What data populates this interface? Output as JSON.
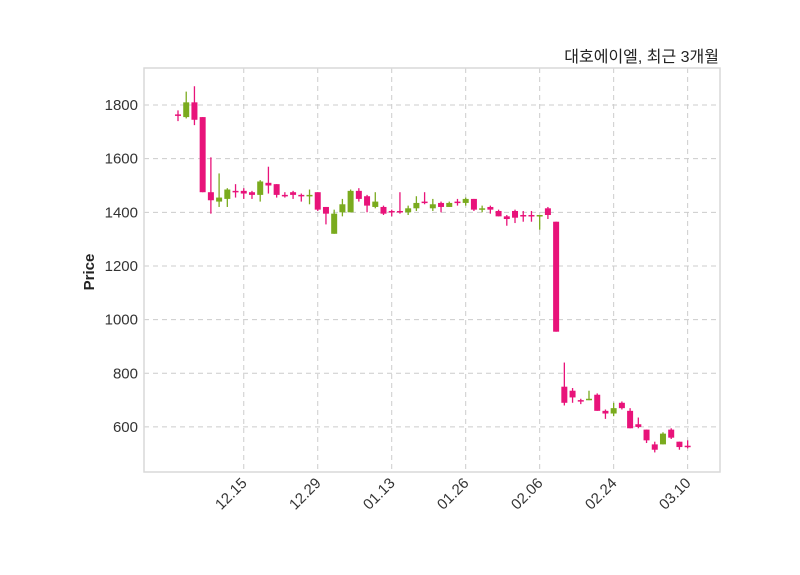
{
  "chart_data": {
    "type": "candlestick",
    "title": "대호에이엘, 최근 3개월",
    "xlabel": "",
    "ylabel": "Price",
    "ylim": [
      432,
      1938
    ],
    "yticks": [
      600,
      800,
      1000,
      1200,
      1400,
      1600,
      1800
    ],
    "grid": true,
    "colors": {
      "up": "#7aab1e",
      "down": "#e8137a",
      "axis": "#d9d9d9"
    },
    "xticks": [
      {
        "index": 8,
        "label": "12.15"
      },
      {
        "index": 17,
        "label": "12.29"
      },
      {
        "index": 26,
        "label": "01.13"
      },
      {
        "index": 35,
        "label": "01.26"
      },
      {
        "index": 44,
        "label": "02.06"
      },
      {
        "index": 53,
        "label": "02.24"
      },
      {
        "index": 62,
        "label": "03.10"
      }
    ],
    "ohlc": [
      [
        1765,
        1780,
        1740,
        1760
      ],
      [
        1755,
        1850,
        1750,
        1810
      ],
      [
        1810,
        1870,
        1725,
        1745
      ],
      [
        1755,
        1755,
        1475,
        1475
      ],
      [
        1475,
        1605,
        1395,
        1445
      ],
      [
        1440,
        1545,
        1420,
        1455
      ],
      [
        1450,
        1490,
        1420,
        1485
      ],
      [
        1480,
        1505,
        1455,
        1475
      ],
      [
        1480,
        1490,
        1450,
        1470
      ],
      [
        1475,
        1480,
        1450,
        1465
      ],
      [
        1465,
        1520,
        1440,
        1515
      ],
      [
        1510,
        1570,
        1470,
        1500
      ],
      [
        1505,
        1505,
        1455,
        1465
      ],
      [
        1465,
        1475,
        1455,
        1460
      ],
      [
        1475,
        1480,
        1450,
        1465
      ],
      [
        1465,
        1470,
        1440,
        1460
      ],
      [
        1460,
        1485,
        1430,
        1465
      ],
      [
        1475,
        1475,
        1405,
        1410
      ],
      [
        1420,
        1420,
        1355,
        1395
      ],
      [
        1320,
        1410,
        1320,
        1395
      ],
      [
        1400,
        1450,
        1385,
        1430
      ],
      [
        1400,
        1485,
        1400,
        1480
      ],
      [
        1480,
        1490,
        1440,
        1450
      ],
      [
        1460,
        1465,
        1400,
        1425
      ],
      [
        1420,
        1475,
        1415,
        1440
      ],
      [
        1420,
        1425,
        1390,
        1395
      ],
      [
        1405,
        1410,
        1385,
        1400
      ],
      [
        1405,
        1475,
        1395,
        1400
      ],
      [
        1400,
        1425,
        1390,
        1415
      ],
      [
        1415,
        1460,
        1405,
        1435
      ],
      [
        1440,
        1475,
        1430,
        1435
      ],
      [
        1415,
        1450,
        1405,
        1430
      ],
      [
        1435,
        1440,
        1400,
        1420
      ],
      [
        1420,
        1440,
        1420,
        1435
      ],
      [
        1440,
        1450,
        1425,
        1435
      ],
      [
        1435,
        1455,
        1425,
        1450
      ],
      [
        1450,
        1450,
        1405,
        1410
      ],
      [
        1410,
        1425,
        1400,
        1415
      ],
      [
        1420,
        1425,
        1395,
        1410
      ],
      [
        1405,
        1410,
        1385,
        1385
      ],
      [
        1385,
        1390,
        1350,
        1375
      ],
      [
        1405,
        1410,
        1360,
        1380
      ],
      [
        1390,
        1405,
        1365,
        1385
      ],
      [
        1390,
        1405,
        1365,
        1385
      ],
      [
        1385,
        1390,
        1335,
        1390
      ],
      [
        1415,
        1420,
        1375,
        1390
      ],
      [
        1365,
        1365,
        955,
        955
      ],
      [
        750,
        840,
        680,
        690
      ],
      [
        735,
        745,
        690,
        710
      ],
      [
        700,
        705,
        685,
        695
      ],
      [
        700,
        735,
        700,
        705
      ],
      [
        720,
        725,
        660,
        660
      ],
      [
        660,
        665,
        630,
        650
      ],
      [
        650,
        690,
        640,
        670
      ],
      [
        690,
        695,
        665,
        670
      ],
      [
        660,
        670,
        595,
        595
      ],
      [
        610,
        635,
        595,
        600
      ],
      [
        590,
        590,
        540,
        550
      ],
      [
        535,
        545,
        505,
        515
      ],
      [
        535,
        580,
        535,
        575
      ],
      [
        590,
        595,
        555,
        560
      ],
      [
        545,
        545,
        515,
        525
      ],
      [
        530,
        550,
        520,
        525
      ]
    ]
  }
}
